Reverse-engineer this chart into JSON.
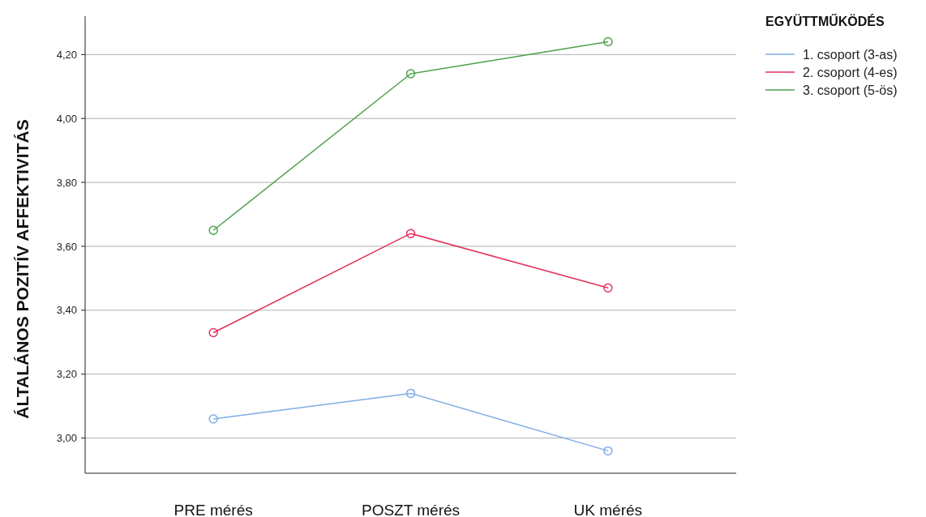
{
  "chart_data": {
    "type": "line",
    "ylabel": "ÁLTALÁNOS POZITÍV AFFEKTIVITÁS",
    "legend_title": "EGYÜTTMŰKÖDÉS",
    "categories": [
      "PRE mérés",
      "POSZT mérés",
      "UK mérés"
    ],
    "series": [
      {
        "name": "1. csoport (3-as)",
        "color": "#7eaee6",
        "values": [
          3.06,
          3.14,
          2.96
        ]
      },
      {
        "name": "2. csoport (4-es)",
        "color": "#e0325a",
        "values": [
          3.33,
          3.64,
          3.47
        ]
      },
      {
        "name": "3. csoport (5-ös)",
        "color": "#4ca04c",
        "values": [
          3.65,
          4.14,
          4.24
        ]
      }
    ],
    "ylim": [
      2.89,
      4.32
    ],
    "yticks": [
      {
        "value": 3,
        "label": "3,00"
      },
      {
        "value": 3.2,
        "label": "3,20"
      },
      {
        "value": 3.4,
        "label": "3,40"
      },
      {
        "value": 3.6,
        "label": "3,60"
      },
      {
        "value": 3.8,
        "label": "3,80"
      },
      {
        "value": 4,
        "label": "4,00"
      },
      {
        "value": 4.2,
        "label": "4,20"
      }
    ],
    "grid": "y",
    "legend": "right",
    "marker": "circle",
    "line_style": "solid"
  }
}
